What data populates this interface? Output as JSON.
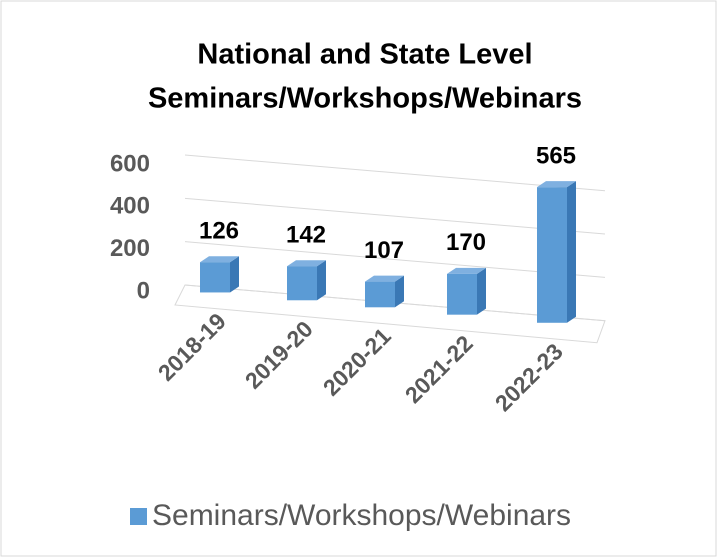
{
  "chart_data": {
    "type": "bar3d",
    "title": [
      "National and State Level",
      "Seminars/Workshops/Webinars"
    ],
    "categories": [
      "2018-19",
      "2019-20",
      "2020-21",
      "2021-22",
      "2022-23"
    ],
    "series": [
      {
        "name": "Seminars/Workshops/Webinars",
        "color": "#5b9bd5",
        "values": [
          126,
          142,
          107,
          170,
          565
        ]
      }
    ],
    "ylim": [
      0,
      600
    ],
    "yticks": [
      0,
      200,
      400,
      600
    ],
    "grid": true,
    "legend": "bottom"
  }
}
